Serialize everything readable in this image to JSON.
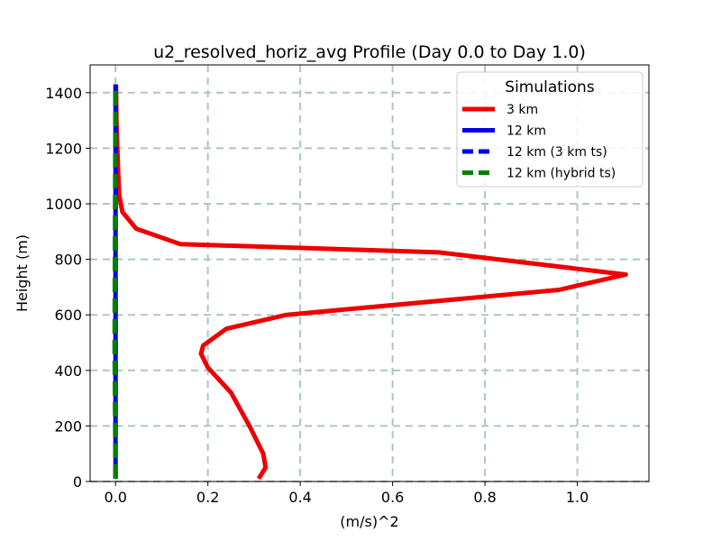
{
  "chart_data": {
    "type": "line",
    "title": "u2_resolved_horiz_avg Profile (Day 0.0 to Day 1.0)",
    "xlabel": "(m/s)^2",
    "ylabel": "Height (m)",
    "xlim": [
      -0.055,
      1.155
    ],
    "ylim": [
      0,
      1500
    ],
    "xticks": [
      0.0,
      0.2,
      0.4,
      0.6,
      0.8,
      1.0
    ],
    "xtick_labels": [
      "0.0",
      "0.2",
      "0.4",
      "0.6",
      "0.8",
      "1.0"
    ],
    "yticks": [
      0,
      200,
      400,
      600,
      800,
      1000,
      1200,
      1400
    ],
    "ytick_labels": [
      "0",
      "200",
      "400",
      "600",
      "800",
      "1000",
      "1200",
      "1400"
    ],
    "grid": true,
    "legend": {
      "title": "Simulations",
      "placement": "top-right"
    },
    "series": [
      {
        "name": "3 km",
        "color": "#ee0000",
        "style": "solid",
        "points": [
          [
            0.31,
            10
          ],
          [
            0.325,
            50
          ],
          [
            0.32,
            100
          ],
          [
            0.29,
            200
          ],
          [
            0.25,
            320
          ],
          [
            0.2,
            410
          ],
          [
            0.185,
            460
          ],
          [
            0.19,
            490
          ],
          [
            0.24,
            550
          ],
          [
            0.37,
            600
          ],
          [
            0.96,
            690
          ],
          [
            1.105,
            745
          ],
          [
            0.7,
            825
          ],
          [
            0.14,
            855
          ],
          [
            0.045,
            910
          ],
          [
            0.015,
            970
          ],
          [
            0.008,
            1030
          ],
          [
            0.006,
            1100
          ],
          [
            0.004,
            1200
          ],
          [
            0.002,
            1300
          ],
          [
            0.001,
            1430
          ]
        ]
      },
      {
        "name": "12 km",
        "color": "#0000ee",
        "style": "solid",
        "points": [
          [
            0.0,
            10
          ],
          [
            0.0,
            1430
          ]
        ]
      },
      {
        "name": "12 km (3 km ts)",
        "color": "#0000ee",
        "style": "dashed",
        "points": [
          [
            0.0,
            10
          ],
          [
            0.0,
            1430
          ]
        ]
      },
      {
        "name": "12 km (hybrid ts)",
        "color": "#008000",
        "style": "dashed",
        "points": [
          [
            0.0,
            10
          ],
          [
            -0.002,
            500
          ],
          [
            0.0,
            1430
          ]
        ]
      }
    ]
  }
}
